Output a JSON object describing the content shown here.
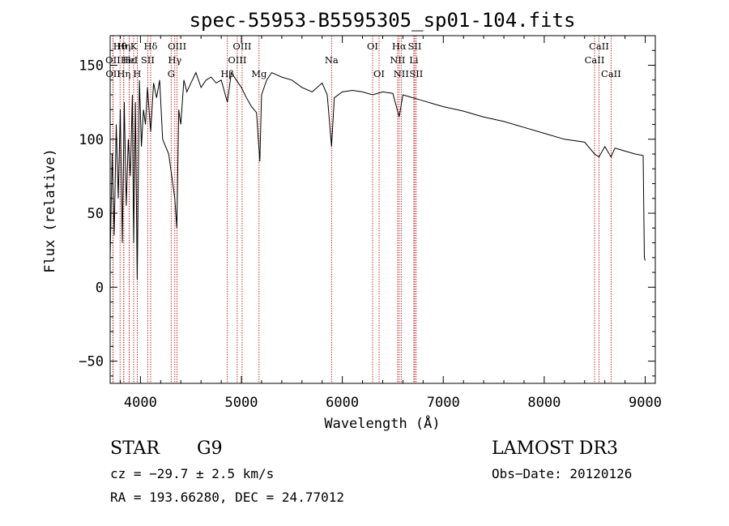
{
  "chart_data": {
    "type": "line",
    "title": "spec-55953-B5595305_sp01-104.fits",
    "xlabel": "Wavelength (Å)",
    "ylabel": "Flux (relative)",
    "xlim": [
      3700,
      9100
    ],
    "ylim": [
      -65,
      170
    ],
    "xticks": [
      4000,
      5000,
      6000,
      7000,
      8000,
      9000
    ],
    "yticks": [
      -50,
      0,
      50,
      100,
      150
    ],
    "series": [
      {
        "name": "flux",
        "x": [
          3700,
          3720,
          3740,
          3760,
          3780,
          3800,
          3820,
          3840,
          3860,
          3880,
          3900,
          3920,
          3933,
          3950,
          3968,
          3990,
          4010,
          4030,
          4050,
          4070,
          4101,
          4130,
          4160,
          4190,
          4220,
          4250,
          4280,
          4300,
          4320,
          4340,
          4360,
          4380,
          4400,
          4430,
          4460,
          4500,
          4550,
          4600,
          4650,
          4700,
          4750,
          4800,
          4861,
          4900,
          4950,
          5000,
          5050,
          5100,
          5150,
          5172,
          5183,
          5200,
          5250,
          5300,
          5400,
          5500,
          5600,
          5700,
          5800,
          5850,
          5893,
          5920,
          6000,
          6100,
          6200,
          6300,
          6400,
          6500,
          6563,
          6600,
          6700,
          6800,
          6900,
          7000,
          7200,
          7400,
          7600,
          7800,
          8000,
          8200,
          8400,
          8498,
          8542,
          8600,
          8662,
          8700,
          8800,
          8900,
          8980,
          8992,
          9000
        ],
        "values": [
          20,
          90,
          35,
          110,
          60,
          120,
          30,
          125,
          55,
          100,
          75,
          130,
          30,
          125,
          5,
          140,
          95,
          120,
          110,
          135,
          105,
          138,
          128,
          140,
          100,
          95,
          90,
          80,
          70,
          60,
          40,
          120,
          110,
          140,
          132,
          138,
          145,
          135,
          140,
          142,
          138,
          140,
          125,
          145,
          140,
          135,
          128,
          122,
          118,
          95,
          85,
          130,
          140,
          145,
          142,
          140,
          135,
          132,
          138,
          130,
          95,
          128,
          132,
          133,
          132,
          130,
          132,
          131,
          115,
          130,
          128,
          126,
          124,
          122,
          119,
          115,
          112,
          108,
          104,
          100,
          98,
          90,
          88,
          95,
          88,
          94,
          92,
          90,
          89,
          20,
          18
        ]
      }
    ],
    "lines": [
      {
        "name": "Hθ",
        "x": 3798,
        "row": 0
      },
      {
        "name": "OII",
        "x": 3727,
        "row": 1
      },
      {
        "name": "OII",
        "x": 3729,
        "row": 2
      },
      {
        "name": "Hη",
        "x": 3835,
        "row": 0
      },
      {
        "name": "Hε",
        "x": 3889,
        "row": 1
      },
      {
        "name": "Hη",
        "x": 3835,
        "row": 2
      },
      {
        "name": "K",
        "x": 3933,
        "row": 0
      },
      {
        "name": "HeI",
        "x": 3889,
        "row": 1
      },
      {
        "name": "SII",
        "x": 4072,
        "row": 1
      },
      {
        "name": "H",
        "x": 3968,
        "row": 2
      },
      {
        "name": "Hδ",
        "x": 4101,
        "row": 0
      },
      {
        "name": "OIII",
        "x": 4363,
        "row": 0
      },
      {
        "name": "Hγ",
        "x": 4340,
        "row": 1
      },
      {
        "name": "G",
        "x": 4304,
        "row": 2
      },
      {
        "name": "OIII",
        "x": 5007,
        "row": 0
      },
      {
        "name": "OIII",
        "x": 4959,
        "row": 1
      },
      {
        "name": "Hβ",
        "x": 4861,
        "row": 2
      },
      {
        "name": "Mg",
        "x": 5175,
        "row": 2
      },
      {
        "name": "Na",
        "x": 5893,
        "row": 1
      },
      {
        "name": "OI",
        "x": 6300,
        "row": 0
      },
      {
        "name": "OI",
        "x": 6364,
        "row": 2
      },
      {
        "name": "Hα",
        "x": 6563,
        "row": 0
      },
      {
        "name": "SII",
        "x": 6717,
        "row": 0
      },
      {
        "name": "NII",
        "x": 6548,
        "row": 1
      },
      {
        "name": "Li",
        "x": 6708,
        "row": 1
      },
      {
        "name": "NII",
        "x": 6583,
        "row": 2
      },
      {
        "name": "SII",
        "x": 6731,
        "row": 2
      },
      {
        "name": "CaII",
        "x": 8542,
        "row": 0
      },
      {
        "name": "CaII",
        "x": 8498,
        "row": 1
      },
      {
        "name": "CaII",
        "x": 8662,
        "row": 2
      }
    ]
  },
  "info": {
    "class_label": "STAR",
    "subclass": "G9",
    "survey": "LAMOST DR3",
    "redshift": "cz = −29.7 ± 2.5 km/s",
    "obs_date": "Obs−Date: 20120126",
    "coords": "RA = 193.66280, DEC =  24.77012"
  },
  "colors": {
    "spectrum": "#000000",
    "line_marker": "#b00000"
  }
}
